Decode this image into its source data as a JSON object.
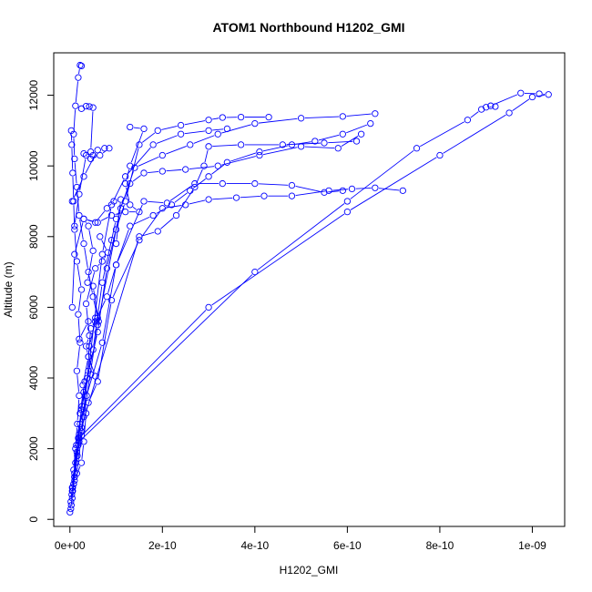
{
  "chart_data": {
    "type": "line",
    "title": "ATOM1 Northbound H1202_GMI",
    "xlabel": "H1202_GMI",
    "ylabel": "Altitude (m)",
    "xlim": [
      -3.5e-11,
      1.07e-09
    ],
    "ylim": [
      -200,
      13200
    ],
    "x_ticks": [
      0,
      2e-10,
      4e-10,
      6e-10,
      8e-10,
      1e-09
    ],
    "x_tick_labels": [
      "0e+00",
      "2e-10",
      "4e-10",
      "6e-10",
      "8e-10",
      "1e-09"
    ],
    "y_ticks": [
      0,
      2000,
      4000,
      6000,
      8000,
      10000,
      12000
    ],
    "y_tick_labels": [
      "0",
      "2000",
      "4000",
      "6000",
      "8000",
      "10000",
      "12000"
    ],
    "color": "#0000ff",
    "marker": "open-circle",
    "series": [
      {
        "points": [
          [
            0,
            200
          ],
          [
            2e-12,
            500
          ],
          [
            5e-12,
            900
          ],
          [
            8e-12,
            1400
          ],
          [
            1.2e-11,
            2000
          ],
          [
            1.6e-11,
            2700
          ],
          [
            2e-11,
            3500
          ],
          [
            1.5e-11,
            4200
          ],
          [
            2.2e-11,
            5000
          ],
          [
            1.8e-11,
            5800
          ],
          [
            2.5e-11,
            6500
          ],
          [
            1.5e-11,
            7300
          ],
          [
            1e-11,
            8200
          ],
          [
            8e-12,
            9000
          ],
          [
            6e-12,
            9800
          ],
          [
            4e-12,
            10600
          ],
          [
            3e-12,
            11000
          ]
        ]
      },
      {
        "points": [
          [
            1e-11,
            1100
          ],
          [
            2.5e-11,
            1600
          ],
          [
            3e-11,
            2200
          ],
          [
            3.5e-11,
            3000
          ],
          [
            2.8e-11,
            3800
          ],
          [
            4e-11,
            4600
          ],
          [
            4.5e-11,
            5400
          ],
          [
            6e-11,
            5700
          ],
          [
            5e-11,
            6300
          ],
          [
            4e-11,
            7000
          ],
          [
            3e-11,
            7800
          ],
          [
            2e-11,
            8600
          ],
          [
            1.5e-11,
            9400
          ],
          [
            1e-11,
            10200
          ],
          [
            8e-12,
            10900
          ],
          [
            1.2e-11,
            11700
          ],
          [
            1.8e-11,
            12500
          ],
          [
            2.2e-11,
            12850
          ],
          [
            2.5e-11,
            12830
          ]
        ]
      },
      {
        "points": [
          [
            5e-12,
            600
          ],
          [
            1e-11,
            1200
          ],
          [
            1.8e-11,
            2100
          ],
          [
            2.5e-11,
            3100
          ],
          [
            3.8e-11,
            4000
          ],
          [
            4.2e-11,
            4900
          ],
          [
            5.5e-11,
            5600
          ],
          [
            8e-11,
            6300
          ],
          [
            1e-10,
            7200
          ],
          [
            1.3e-10,
            8300
          ],
          [
            1.8e-10,
            8600
          ],
          [
            2.2e-10,
            8900
          ],
          [
            2.6e-10,
            9300
          ],
          [
            3e-10,
            9700
          ],
          [
            3.4e-10,
            10100
          ],
          [
            4.1e-10,
            10400
          ],
          [
            4.8e-10,
            10600
          ],
          [
            5.3e-10,
            10700
          ],
          [
            5.9e-10,
            10900
          ],
          [
            6.5e-10,
            11200
          ]
        ]
      },
      {
        "points": [
          [
            3e-12,
            400
          ],
          [
            6e-12,
            800
          ],
          [
            1e-11,
            1300
          ],
          [
            1.5e-11,
            1900
          ],
          [
            2e-11,
            2400
          ],
          [
            1.5e-10,
            8000
          ],
          [
            1.9e-10,
            8150
          ],
          [
            2.3e-10,
            8600
          ],
          [
            2.7e-10,
            9400
          ],
          [
            2.9e-10,
            10000
          ],
          [
            3e-10,
            10550
          ],
          [
            3.7e-10,
            10600
          ],
          [
            4.6e-10,
            10600
          ],
          [
            5.5e-10,
            10650
          ],
          [
            6.2e-10,
            10700
          ]
        ]
      },
      {
        "points": [
          [
            2e-12,
            300
          ],
          [
            8e-12,
            1000
          ],
          [
            1.6e-11,
            1800
          ],
          [
            2.4e-11,
            2500
          ],
          [
            4e-11,
            3300
          ],
          [
            6e-11,
            3900
          ],
          [
            9e-11,
            6200
          ],
          [
            1.5e-10,
            7900
          ],
          [
            2e-10,
            8800
          ],
          [
            2.5e-10,
            8900
          ],
          [
            3e-10,
            9050
          ],
          [
            3.6e-10,
            9100
          ],
          [
            4.2e-10,
            9150
          ],
          [
            4.8e-10,
            9150
          ],
          [
            5.6e-10,
            9300
          ],
          [
            6.1e-10,
            9350
          ],
          [
            6.6e-10,
            9380
          ],
          [
            7.2e-10,
            9300
          ]
        ]
      },
      {
        "points": [
          [
            4e-12,
            700
          ],
          [
            1.2e-11,
            1600
          ],
          [
            2.2e-11,
            2700
          ],
          [
            3.6e-11,
            3500
          ],
          [
            7e-11,
            5000
          ],
          [
            1e-10,
            7200
          ],
          [
            1.6e-10,
            9000
          ],
          [
            2.1e-10,
            8950
          ],
          [
            2.7e-10,
            9500
          ],
          [
            3.3e-10,
            9500
          ],
          [
            4e-10,
            9500
          ],
          [
            4.8e-10,
            9450
          ],
          [
            5.5e-10,
            9250
          ],
          [
            5.9e-10,
            9300
          ]
        ]
      },
      {
        "points": [
          [
            6e-12,
            900
          ],
          [
            1.4e-11,
            2100
          ],
          [
            2.6e-11,
            3200
          ],
          [
            5e-11,
            4800
          ],
          [
            7e-11,
            6700
          ],
          [
            1e-10,
            8500
          ],
          [
            1.3e-10,
            9500
          ],
          [
            1.6e-10,
            9800
          ],
          [
            2e-10,
            9850
          ],
          [
            2.5e-10,
            9900
          ],
          [
            3.2e-10,
            10000
          ],
          [
            4.1e-10,
            10300
          ],
          [
            5e-10,
            10550
          ],
          [
            5.8e-10,
            10500
          ],
          [
            6.3e-10,
            10900
          ]
        ]
      },
      {
        "points": [
          [
            5e-12,
            800
          ],
          [
            1.8e-11,
            2300
          ],
          [
            3e-11,
            3600
          ],
          [
            6e-11,
            5300
          ],
          [
            8e-11,
            7100
          ],
          [
            1.1e-10,
            8800
          ],
          [
            1.4e-10,
            9950
          ],
          [
            2e-10,
            10300
          ],
          [
            2.6e-10,
            10600
          ],
          [
            3.2e-10,
            10900
          ],
          [
            4e-10,
            11200
          ],
          [
            5e-10,
            11350
          ],
          [
            5.9e-10,
            11400
          ],
          [
            6.6e-10,
            11480
          ]
        ]
      },
      {
        "points": [
          [
            1e-11,
            1200
          ],
          [
            2.5e-11,
            2600
          ],
          [
            4e-11,
            4200
          ],
          [
            7e-11,
            7500
          ],
          [
            9e-11,
            8900
          ],
          [
            1.2e-10,
            9700
          ],
          [
            1.8e-10,
            10600
          ],
          [
            2.4e-10,
            10900
          ],
          [
            3e-10,
            11000
          ],
          [
            3.4e-10,
            11050
          ]
        ]
      },
      {
        "points": [
          [
            1.5e-11,
            1300
          ],
          [
            3e-11,
            2900
          ],
          [
            6e-11,
            5500
          ],
          [
            1e-10,
            8200
          ],
          [
            1.2e-10,
            9000
          ],
          [
            1.5e-10,
            10600
          ],
          [
            1.9e-10,
            11000
          ],
          [
            2.4e-10,
            11150
          ],
          [
            3e-10,
            11300
          ],
          [
            3.3e-10,
            11370
          ],
          [
            3.7e-10,
            11380
          ],
          [
            4.3e-10,
            11380
          ]
        ]
      },
      {
        "points": [
          [
            8e-12,
            1000
          ],
          [
            2e-11,
            2200
          ],
          [
            4e-10,
            7000
          ],
          [
            6e-10,
            9000
          ],
          [
            7.5e-10,
            10500
          ],
          [
            8.6e-10,
            11300
          ],
          [
            8.9e-10,
            11600
          ],
          [
            9e-10,
            11660
          ],
          [
            9.2e-10,
            11680
          ]
        ]
      },
      {
        "points": [
          [
            2e-11,
            2300
          ],
          [
            3e-10,
            6000
          ],
          [
            6e-10,
            8700
          ],
          [
            8e-10,
            10300
          ],
          [
            9.5e-10,
            11500
          ],
          [
            1e-09,
            11950
          ],
          [
            1.035e-09,
            12020
          ],
          [
            1.015e-09,
            12040
          ],
          [
            9.75e-10,
            12060
          ],
          [
            9.1e-10,
            11700
          ]
        ]
      },
      {
        "points": [
          [
            5e-12,
            6000
          ],
          [
            1e-11,
            7500
          ],
          [
            3e-11,
            8500
          ],
          [
            6e-11,
            8400
          ],
          [
            9e-11,
            8600
          ],
          [
            1.2e-10,
            8700
          ],
          [
            1.5e-10,
            8700
          ],
          [
            1.3e-10,
            8900
          ],
          [
            1.2e-10,
            9500
          ],
          [
            1.3e-10,
            10000
          ],
          [
            1.6e-10,
            11050
          ],
          [
            1.3e-10,
            11100
          ]
        ]
      },
      {
        "points": [
          [
            1e-11,
            8300
          ],
          [
            2e-11,
            9200
          ],
          [
            3.5e-11,
            10300
          ],
          [
            4.5e-11,
            10400
          ],
          [
            5e-11,
            11650
          ],
          [
            4.2e-11,
            11680
          ],
          [
            3.5e-11,
            11690
          ],
          [
            2.5e-11,
            11620
          ]
        ]
      },
      {
        "points": [
          [
            5e-12,
            9000
          ],
          [
            3e-11,
            9700
          ],
          [
            6e-11,
            10450
          ],
          [
            7.5e-11,
            10500
          ],
          [
            8.5e-11,
            10500
          ],
          [
            6.5e-11,
            10300
          ],
          [
            4.5e-11,
            10200
          ],
          [
            3e-11,
            10350
          ],
          [
            5e-11,
            10300
          ]
        ]
      },
      {
        "points": [
          [
            2e-11,
            5100
          ],
          [
            4e-11,
            5600
          ],
          [
            5.5e-11,
            5700
          ],
          [
            6.2e-11,
            5600
          ],
          [
            5e-11,
            6600
          ],
          [
            3.8e-11,
            6700
          ],
          [
            5e-11,
            7600
          ],
          [
            4e-11,
            8300
          ],
          [
            3e-11,
            8500
          ],
          [
            5.5e-11,
            8400
          ],
          [
            8e-11,
            8800
          ],
          [
            9.5e-11,
            9000
          ],
          [
            1.1e-10,
            9050
          ],
          [
            1e-10,
            7800
          ],
          [
            9e-11,
            7900
          ]
        ]
      },
      {
        "points": [
          [
            2.2e-11,
            3000
          ],
          [
            3.2e-11,
            3900
          ],
          [
            4.5e-11,
            4100
          ],
          [
            5.5e-11,
            4050
          ],
          [
            4e-11,
            4600
          ],
          [
            3.5e-11,
            4900
          ],
          [
            4.2e-11,
            5200
          ],
          [
            3.5e-11,
            6100
          ],
          [
            5.5e-11,
            7100
          ],
          [
            7e-11,
            7300
          ],
          [
            8.2e-11,
            7550
          ],
          [
            6.5e-11,
            8000
          ]
        ]
      }
    ]
  }
}
